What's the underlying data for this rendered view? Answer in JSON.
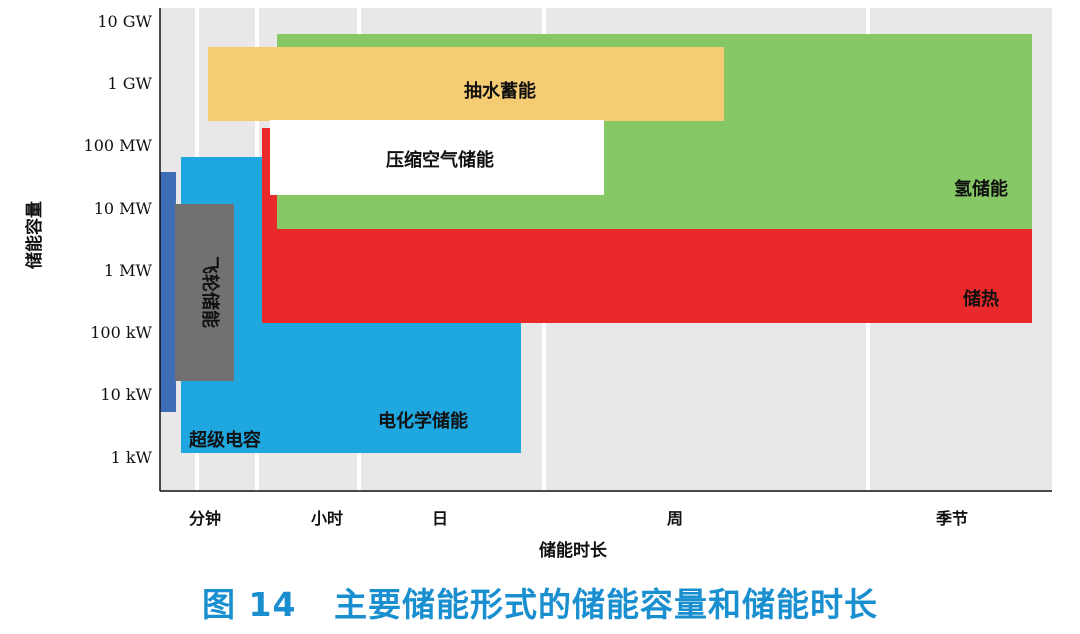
{
  "caption": {
    "prefix": "图 14",
    "text": "主要储能形式的储能容量和储能时长"
  },
  "chart_data": {
    "type": "range-box",
    "xlabel": "储能时长",
    "ylabel": "储能容量",
    "x_ticks": [
      "分钟",
      "小时",
      "日",
      "周",
      "季节"
    ],
    "y_ticks": [
      "1 kW",
      "10 kW",
      "100 kW",
      "1 MW",
      "10 MW",
      "100 MW",
      "1 GW",
      "10 GW"
    ],
    "y_scale": "log",
    "grid": "vertical bands",
    "colors": {
      "background": "#e8e8e8",
      "pumped_hydro": "#f5cc73",
      "compressed_air": "#ffffff",
      "hydrogen": "#86c766",
      "heat": "#ea2a2a",
      "electrochemical": "#1fa7e0",
      "flywheel": "#727071",
      "supercapacitor": "#3f6db5"
    },
    "series": [
      {
        "name": "氢储能",
        "label": "氢储能",
        "color_key": "hydrogen",
        "x_range": [
          "小时",
          "季节"
        ],
        "y_range": [
          "10 MW",
          "10 GW"
        ]
      },
      {
        "name": "储热",
        "label": "储热",
        "color_key": "heat",
        "x_range": [
          "小时",
          "季节"
        ],
        "y_range": [
          "100 kW",
          "100 MW"
        ]
      },
      {
        "name": "电化学储能",
        "label": "电化学储能",
        "color_key": "electrochemical",
        "x_range": [
          "分钟",
          "日"
        ],
        "y_range": [
          "1 kW",
          "100 MW"
        ]
      },
      {
        "name": "抽水蓄能",
        "label": "抽水蓄能",
        "color_key": "pumped_hydro",
        "x_range": [
          "分钟",
          "周"
        ],
        "y_range": [
          "100 MW",
          "10 GW"
        ]
      },
      {
        "name": "压缩空气储能",
        "label": "压缩空气储能",
        "color_key": "compressed_air",
        "x_range": [
          "小时",
          "周"
        ],
        "y_range": [
          "10 MW",
          "1 GW"
        ]
      },
      {
        "name": "飞轮储能",
        "label": "飞轮储能",
        "color_key": "flywheel",
        "x_range": [
          "分钟",
          "分钟"
        ],
        "y_range": [
          "10 kW",
          "10 MW"
        ]
      },
      {
        "name": "超级电容",
        "label": "超级电容",
        "color_key": "supercapacitor",
        "x_range": [
          "分钟",
          "分钟"
        ],
        "y_range": [
          "10 kW",
          "100 MW"
        ]
      }
    ]
  }
}
